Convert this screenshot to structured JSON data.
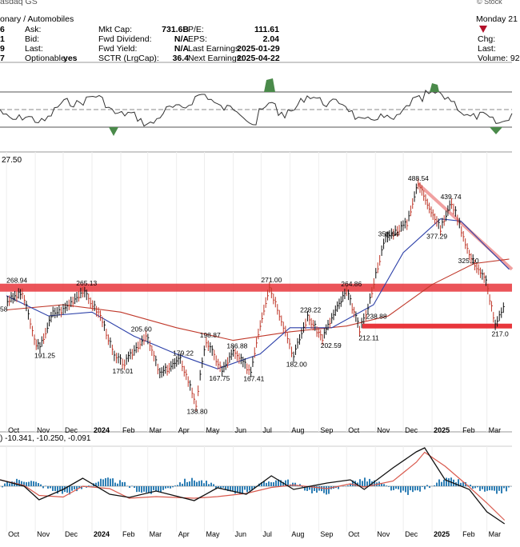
{
  "header": {
    "left_edge": [
      "asdaq GS",
      "onary / Automobiles",
      "6",
      "1",
      "9",
      "7"
    ],
    "labels": {
      "ask": "Ask:",
      "bid": "Bid:",
      "last": "Last:",
      "optionable": "Optionable:"
    },
    "optionable_value": "yes",
    "col2": [
      {
        "label": "Mkt Cap:",
        "value": "731.6B"
      },
      {
        "label": "Fwd Dividend:",
        "value": "N/A"
      },
      {
        "label": "Fwd Yield:",
        "value": "N/A"
      },
      {
        "label": "SCTR (LrgCap):",
        "value": "36.4"
      }
    ],
    "col3": [
      {
        "label": "P/E:",
        "value": "111.61"
      },
      {
        "label": "EPS:",
        "value": "2.04"
      },
      {
        "label": "Last Earnings:",
        "value": "2025-01-29"
      },
      {
        "label": "Next Earnings:",
        "value": "2025-04-22"
      }
    ],
    "right": {
      "day": "Monday 21",
      "stockcharts": "© Stock",
      "chg": "Chg:",
      "last": "Last:",
      "volume": "Volume: 92"
    },
    "down_color": "#b3112a"
  },
  "chart_data": {
    "type": "line",
    "title": "",
    "price_left_label": "27.50",
    "x_labels": [
      "Oct",
      "Nov",
      "Dec",
      "2024",
      "Feb",
      "Mar",
      "Apr",
      "May",
      "Jun",
      "Jul",
      "Aug",
      "Sep",
      "Oct",
      "Nov",
      "Dec",
      "2025",
      "Feb",
      "Mar"
    ],
    "annotations": [
      "488.54",
      "439.74",
      "358.64",
      "377.29",
      "325.10",
      "268.94",
      "265.13",
      "271.00",
      "264.86",
      "238.88",
      "228.22",
      "212.11",
      "217.0",
      "191.25",
      "205.60",
      "198.87",
      "186.88",
      "179.22",
      "175.01",
      "167.75",
      "167.41",
      "202.59",
      "182.00",
      "138.80",
      "58"
    ],
    "price_series": [
      [
        "2023-10-02",
        251
      ],
      [
        "2023-10-18",
        262
      ],
      [
        "2023-10-31",
        200
      ],
      [
        "2023-11-06",
        191.25
      ],
      [
        "2023-11-20",
        234
      ],
      [
        "2023-12-01",
        238
      ],
      [
        "2023-12-22",
        265.13
      ],
      [
        "2024-01-10",
        230
      ],
      [
        "2024-01-25",
        182
      ],
      [
        "2024-02-05",
        175.01
      ],
      [
        "2024-02-28",
        205.6
      ],
      [
        "2024-03-14",
        165
      ],
      [
        "2024-04-05",
        179.22
      ],
      [
        "2024-04-22",
        138.8
      ],
      [
        "2024-05-03",
        198.87
      ],
      [
        "2024-05-20",
        167.75
      ],
      [
        "2024-06-01",
        186.88
      ],
      [
        "2024-06-20",
        167.41
      ],
      [
        "2024-07-10",
        271
      ],
      [
        "2024-07-25",
        218
      ],
      [
        "2024-08-05",
        182
      ],
      [
        "2024-08-20",
        228.22
      ],
      [
        "2024-09-05",
        202.59
      ],
      [
        "2024-10-01",
        264.86
      ],
      [
        "2024-10-15",
        212.11
      ],
      [
        "2024-10-24",
        238.88
      ],
      [
        "2024-11-12",
        358.64
      ],
      [
        "2024-12-05",
        390
      ],
      [
        "2024-12-17",
        488.54
      ],
      [
        "2024-12-31",
        420
      ],
      [
        "2025-01-10",
        377.29
      ],
      [
        "2025-01-22",
        439.74
      ],
      [
        "2025-02-10",
        325.1
      ],
      [
        "2025-02-28",
        280
      ],
      [
        "2025-03-10",
        217
      ],
      [
        "2025-03-21",
        245
      ]
    ],
    "sma50": [
      [
        "2023-10-01",
        258
      ],
      [
        "2023-11-15",
        230
      ],
      [
        "2024-01-01",
        235
      ],
      [
        "2024-02-15",
        205
      ],
      [
        "2024-04-01",
        185
      ],
      [
        "2024-05-15",
        170
      ],
      [
        "2024-06-30",
        185
      ],
      [
        "2024-08-01",
        215
      ],
      [
        "2024-09-15",
        215
      ],
      [
        "2024-10-30",
        245
      ],
      [
        "2024-12-01",
        330
      ],
      [
        "2025-01-10",
        400
      ],
      [
        "2025-02-01",
        395
      ],
      [
        "2025-03-01",
        340
      ],
      [
        "2025-03-25",
        300
      ]
    ],
    "sma200": [
      [
        "2023-10-01",
        238
      ],
      [
        "2023-12-01",
        245
      ],
      [
        "2024-02-01",
        235
      ],
      [
        "2024-04-01",
        215
      ],
      [
        "2024-06-01",
        200
      ],
      [
        "2024-08-01",
        210
      ],
      [
        "2024-10-01",
        217
      ],
      [
        "2024-11-15",
        230
      ],
      [
        "2025-01-01",
        275
      ],
      [
        "2025-02-15",
        310
      ],
      [
        "2025-03-25",
        318
      ]
    ],
    "support_lines": [
      268.94,
      217
    ],
    "macd_label": ") -10.341, -10.250, -0.091",
    "macd_values": [
      "-10.341",
      "-10.250",
      "-0.091"
    ]
  }
}
